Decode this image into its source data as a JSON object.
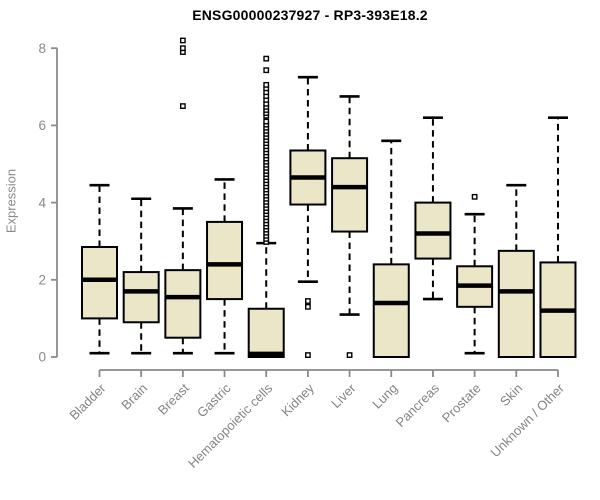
{
  "chart_data": {
    "type": "boxplot",
    "title": "ENSG00000237927 - RP3-393E18.2",
    "ylabel": "Expression",
    "xlabel": "",
    "ylim": [
      0,
      8
    ],
    "yticks": [
      0,
      2,
      4,
      6,
      8
    ],
    "grid": false,
    "legend": "none",
    "categories": [
      "Bladder",
      "Brain",
      "Breast",
      "Gastric",
      "Hematopoietic cells",
      "Kidney",
      "Liver",
      "Lung",
      "Pancreas",
      "Prostate",
      "Skin",
      "Unknown / Other"
    ],
    "series": [
      {
        "name": "Bladder",
        "low": 0.1,
        "q1": 1.0,
        "median": 2.0,
        "q3": 2.85,
        "high": 4.45,
        "outliers": []
      },
      {
        "name": "Brain",
        "low": 0.1,
        "q1": 0.9,
        "median": 1.7,
        "q3": 2.2,
        "high": 4.1,
        "outliers": []
      },
      {
        "name": "Breast",
        "low": 0.1,
        "q1": 0.5,
        "median": 1.55,
        "q3": 2.25,
        "high": 3.85,
        "outliers": [
          6.5,
          7.9,
          8.0,
          8.2
        ]
      },
      {
        "name": "Gastric",
        "low": 0.1,
        "q1": 1.5,
        "median": 2.4,
        "q3": 3.5,
        "high": 4.6,
        "outliers": []
      },
      {
        "name": "Hematopoietic cells",
        "low": 0.0,
        "q1": 0.0,
        "median": 0.08,
        "q3": 1.25,
        "high": 2.95,
        "outliers": [
          2.98,
          3.06,
          3.14,
          3.22,
          3.3,
          3.38,
          3.46,
          3.54,
          3.62,
          3.7,
          3.78,
          3.86,
          3.94,
          4.02,
          4.1,
          4.18,
          4.26,
          4.34,
          4.42,
          4.5,
          4.58,
          4.66,
          4.74,
          4.82,
          4.9,
          4.98,
          5.06,
          5.14,
          5.22,
          5.3,
          5.38,
          5.46,
          5.54,
          5.62,
          5.7,
          5.78,
          5.86,
          5.94,
          6.02,
          6.1,
          6.25,
          6.32,
          6.4,
          6.48,
          6.56,
          6.66,
          6.76,
          6.86,
          6.96,
          7.05,
          7.43,
          7.73
        ]
      },
      {
        "name": "Kidney",
        "low": 1.95,
        "q1": 3.95,
        "median": 4.65,
        "q3": 5.35,
        "high": 7.25,
        "outliers": [
          1.45,
          1.3,
          0.05
        ]
      },
      {
        "name": "Liver",
        "low": 1.1,
        "q1": 3.25,
        "median": 4.4,
        "q3": 5.15,
        "high": 6.75,
        "outliers": [
          0.05
        ]
      },
      {
        "name": "Lung",
        "low": 0.0,
        "q1": 0.0,
        "median": 1.4,
        "q3": 2.4,
        "high": 5.6,
        "outliers": []
      },
      {
        "name": "Pancreas",
        "low": 1.5,
        "q1": 2.55,
        "median": 3.2,
        "q3": 4.0,
        "high": 6.2,
        "outliers": []
      },
      {
        "name": "Prostate",
        "low": 0.1,
        "q1": 1.3,
        "median": 1.85,
        "q3": 2.35,
        "high": 3.7,
        "outliers": [
          4.15
        ]
      },
      {
        "name": "Skin",
        "low": 0.0,
        "q1": 0.0,
        "median": 1.7,
        "q3": 2.75,
        "high": 4.45,
        "outliers": []
      },
      {
        "name": "Unknown / Other",
        "low": 0.0,
        "q1": 0.0,
        "median": 1.2,
        "q3": 2.45,
        "high": 6.2,
        "outliers": []
      }
    ],
    "colors": {
      "box_fill": "#ECE6C9",
      "box_stroke": "#000000",
      "median": "#000000",
      "whisker": "#000000",
      "outlier_stroke": "#000000",
      "axis": "#8a8a8a",
      "tick_label": "#8a8a8a",
      "category_label": "#848484",
      "title": "#000000",
      "background": "#ffffff"
    }
  }
}
